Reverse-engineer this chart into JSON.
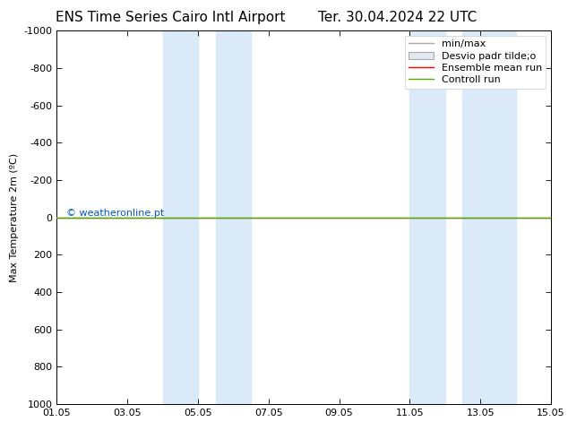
{
  "title": "ENS Time Series Cairo Intl Airport",
  "title2": "Ter. 30.04.2024 22 UTC",
  "ylabel": "Max Temperature 2m (ºC)",
  "xlim": [
    0,
    14
  ],
  "ylim": [
    1000,
    -1000
  ],
  "yticks": [
    -1000,
    -800,
    -600,
    -400,
    -200,
    0,
    200,
    400,
    600,
    800,
    1000
  ],
  "xtick_labels": [
    "01.05",
    "03.05",
    "05.05",
    "07.05",
    "09.05",
    "11.05",
    "13.05",
    "15.05"
  ],
  "xtick_positions": [
    0,
    2,
    4,
    6,
    8,
    10,
    12,
    14
  ],
  "shade_regions": [
    [
      3.0,
      4.0
    ],
    [
      4.5,
      5.5
    ],
    [
      10.0,
      11.0
    ],
    [
      11.5,
      13.0
    ]
  ],
  "shade_color": "#daeaf8",
  "green_line_color": "#55aa00",
  "red_line_color": "#ff0000",
  "grey_line_color": "#aaaaaa",
  "copyright_text": "© weatheronline.pt",
  "copyright_color": "#0055cc",
  "legend_labels": [
    "min/max",
    "Desvio padr tilde;o",
    "Ensemble mean run",
    "Controll run"
  ],
  "legend_colors": [
    "#aaaaaa",
    "#d0d0d0",
    "#ff0000",
    "#55aa00"
  ],
  "bg_color": "#ffffff",
  "font_size": 8,
  "title_font_size": 11
}
